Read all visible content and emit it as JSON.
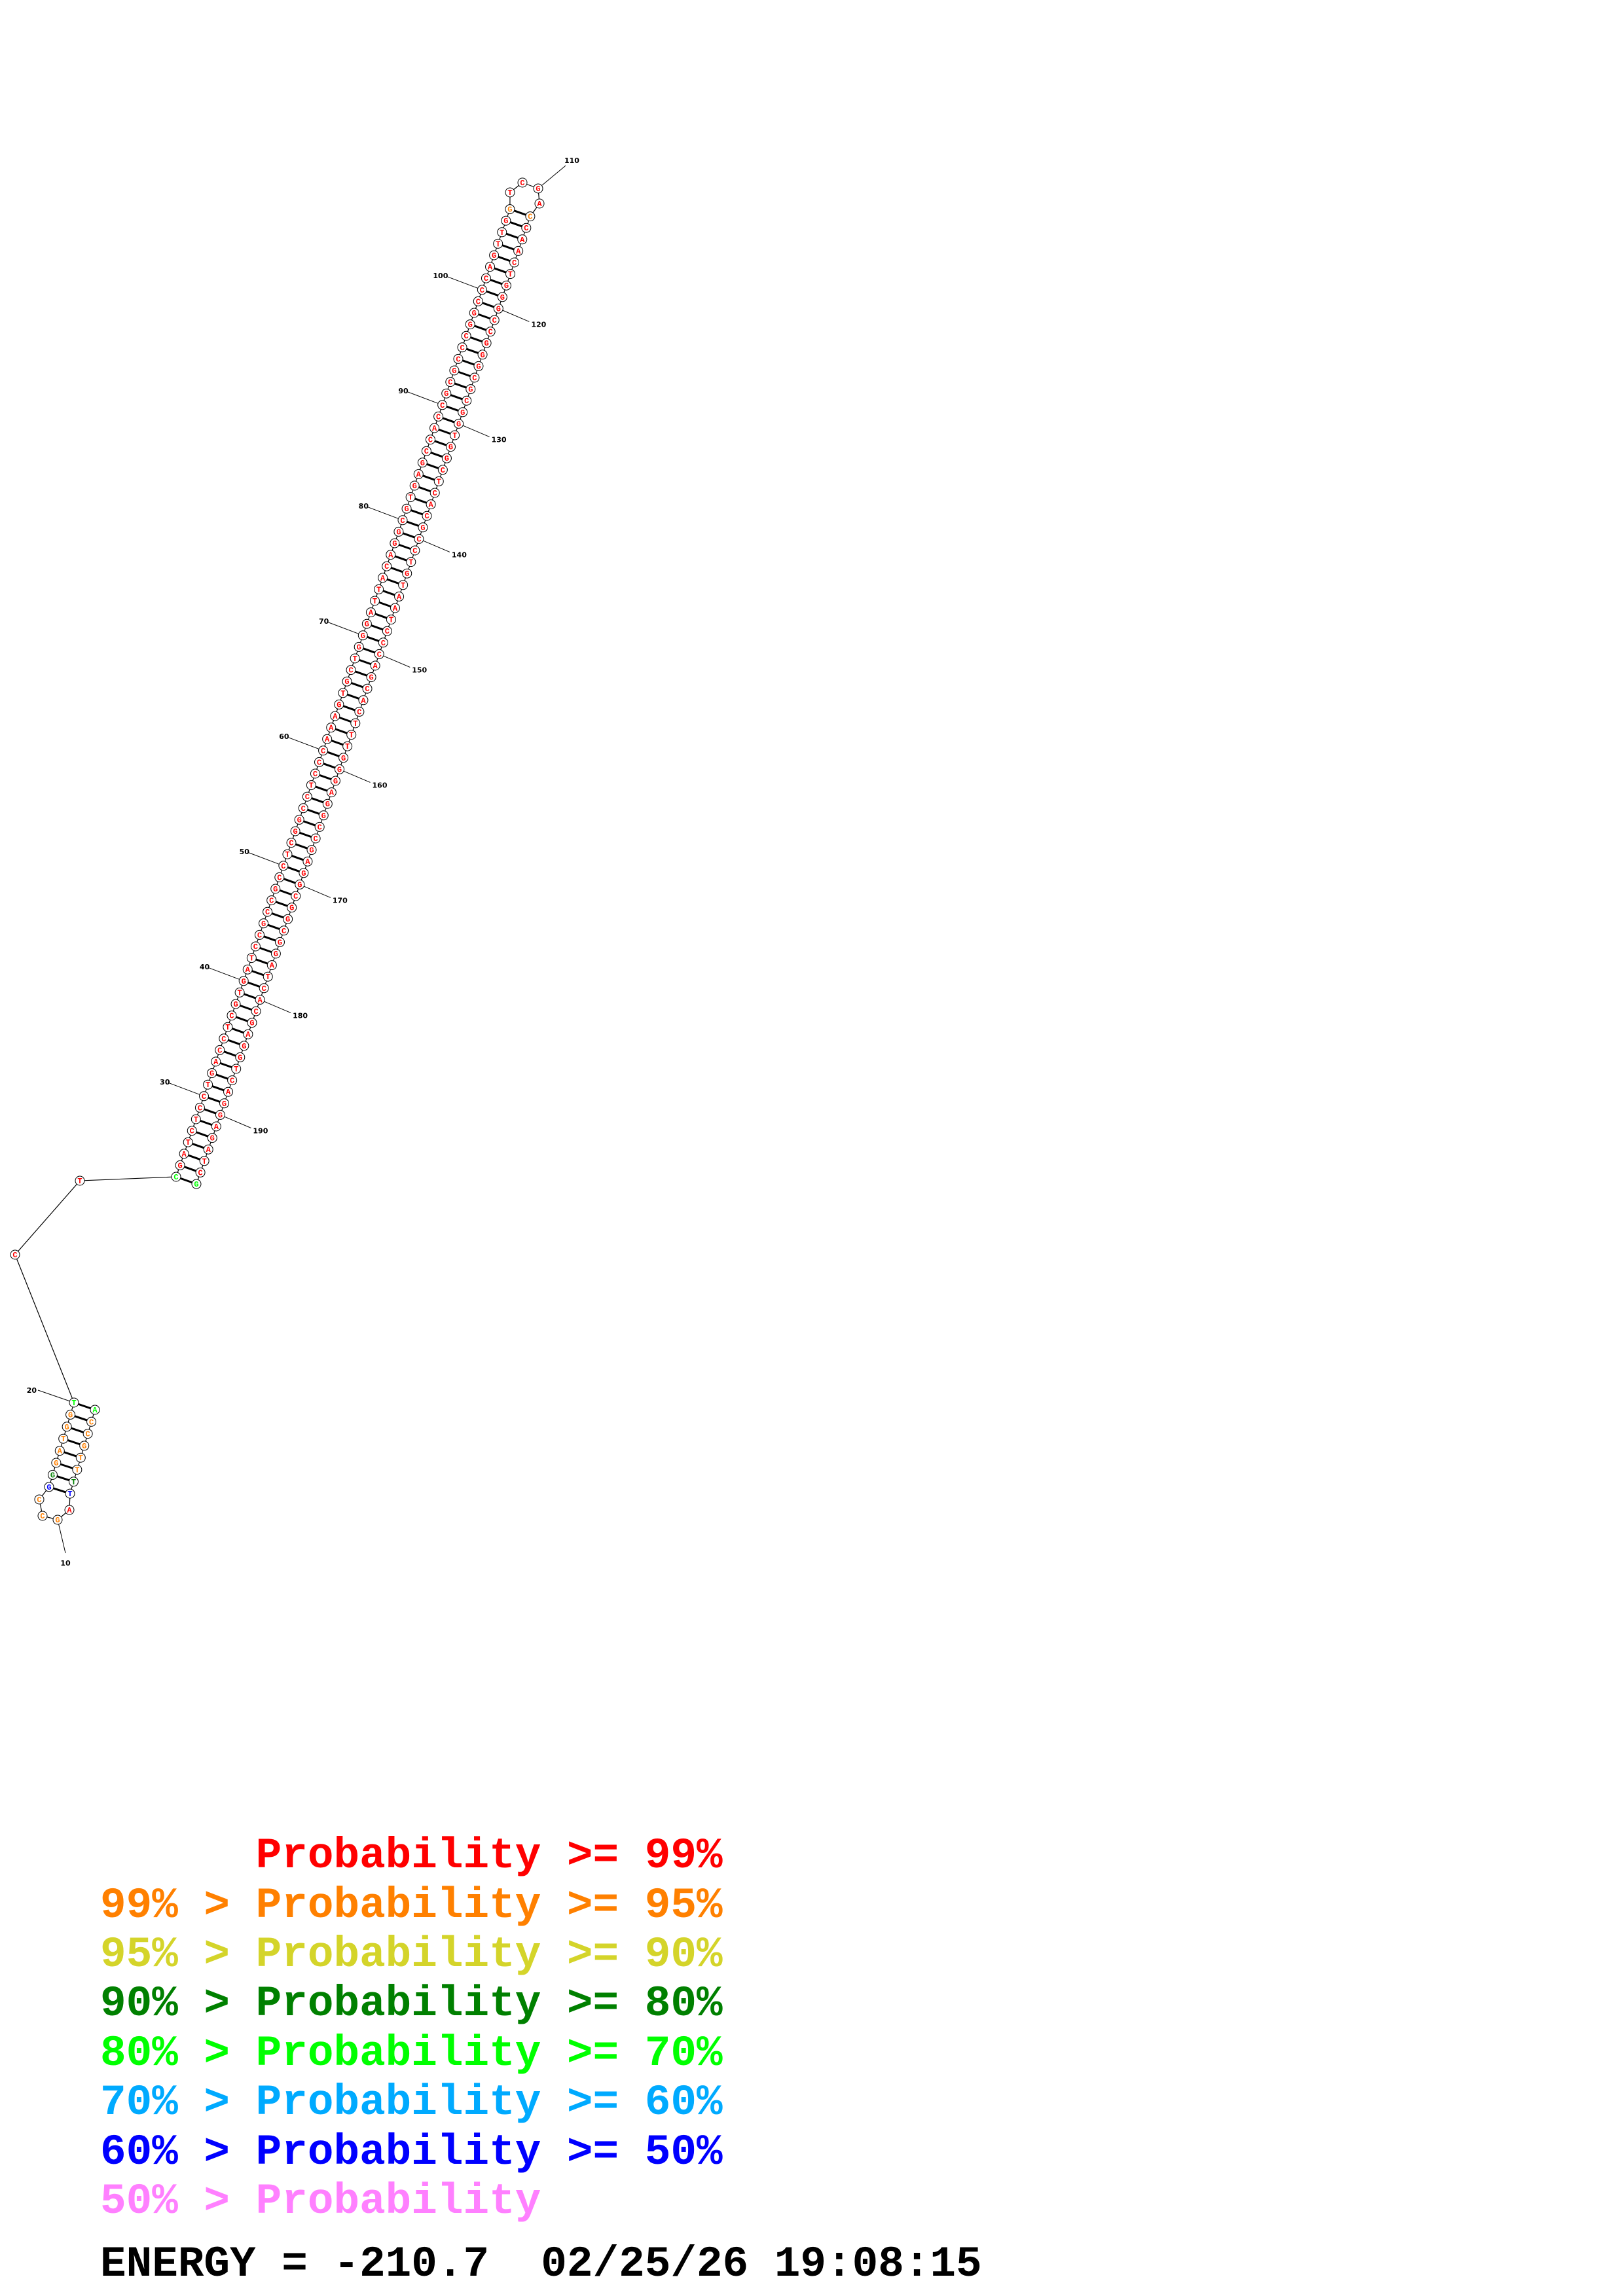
{
  "structure": {
    "sequence": "ACCGTTTTAGCCGGGATGGTCTCGATCTCCTGACCTCGTGATCCGCCGCCTCGGCCTCCCAAAGTGCTGGGATTACAGGCGTGAGCCACCGCGCCCGGCCCAGTTGGTCGACCAACTGGGCCGGGCGCGGTGGCTCACGCCTGTAATCCCAGCACTTTGGGAGGCCGAGGCGGCGGATCACGAGGTCAGGAGATCG",
    "probability_class_runs": [
      {
        "from": 1,
        "to": 1,
        "class": 4
      },
      {
        "from": 2,
        "to": 6,
        "class": 1
      },
      {
        "from": 7,
        "to": 7,
        "class": 3
      },
      {
        "from": 8,
        "to": 8,
        "class": 6
      },
      {
        "from": 9,
        "to": 9,
        "class": 0
      },
      {
        "from": 10,
        "to": 12,
        "class": 1
      },
      {
        "from": 13,
        "to": 13,
        "class": 6
      },
      {
        "from": 14,
        "to": 14,
        "class": 3
      },
      {
        "from": 15,
        "to": 19,
        "class": 1
      },
      {
        "from": 20,
        "to": 20,
        "class": 4
      },
      {
        "from": 21,
        "to": 22,
        "class": 0
      },
      {
        "from": 23,
        "to": 23,
        "class": 4
      },
      {
        "from": 24,
        "to": 106,
        "class": 0
      },
      {
        "from": 107,
        "to": 107,
        "class": 1
      },
      {
        "from": 108,
        "to": 111,
        "class": 0
      },
      {
        "from": 112,
        "to": 112,
        "class": 1
      },
      {
        "from": 113,
        "to": 195,
        "class": 0
      },
      {
        "from": 196,
        "to": 196,
        "class": 4
      }
    ],
    "position_labels": [
      "10",
      "20",
      "30",
      "40",
      "50",
      "60",
      "70",
      "80",
      "90",
      "100",
      "110",
      "120",
      "130",
      "140",
      "150",
      "160",
      "170",
      "180",
      "190"
    ]
  },
  "legend": {
    "class_colors": [
      "#ff0000",
      "#ff8000",
      "#d4d42a",
      "#008000",
      "#00ff00",
      "#00aaff",
      "#0000ff",
      "#ff80ff"
    ],
    "lines": [
      "      Probability >= 99%",
      "99% > Probability >= 95%",
      "95% > Probability >= 90%",
      "90% > Probability >= 80%",
      "80% > Probability >= 70%",
      "70% > Probability >= 60%",
      "60% > Probability >= 50%",
      "50% > Probability"
    ]
  },
  "footer": {
    "energy_line": "ENERGY = -210.7  02/25/26 19:08:15"
  }
}
